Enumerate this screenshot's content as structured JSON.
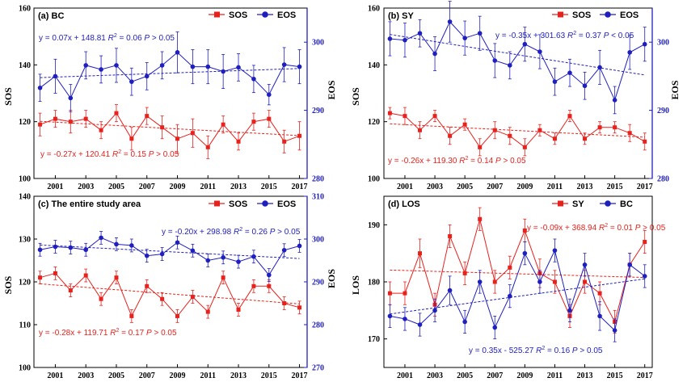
{
  "chart_data": [
    {
      "type": "line",
      "panel_label": "(a) BC",
      "x": [
        2000,
        2001,
        2002,
        2003,
        2004,
        2005,
        2006,
        2007,
        2008,
        2009,
        2010,
        2011,
        2012,
        2013,
        2014,
        2015,
        2016,
        2017
      ],
      "xticks": [
        "2001",
        "2003",
        "2005",
        "2007",
        "2009",
        "2011",
        "2013",
        "2015",
        "2017"
      ],
      "left_axis": {
        "label": "SOS",
        "lim": [
          100,
          160
        ],
        "ticks": [
          "100",
          "120",
          "140",
          "160"
        ],
        "color": "#000000"
      },
      "right_axis": {
        "label": "EOS",
        "lim": [
          280,
          305
        ],
        "ticks": [
          "280",
          "290",
          "300"
        ],
        "color": "#1f1fbf"
      },
      "series": [
        {
          "name": "SOS",
          "axis": "left",
          "color": "#e8211c",
          "marker": "square",
          "values": [
            119,
            121,
            120,
            121,
            117,
            123,
            114,
            122,
            118,
            114,
            116,
            111,
            119,
            113,
            120,
            121,
            113,
            115
          ],
          "errors": [
            4,
            3,
            4,
            3,
            3,
            3,
            4,
            3,
            4,
            5,
            5,
            4,
            3,
            3,
            3,
            3,
            4,
            5
          ]
        },
        {
          "name": "EOS",
          "axis": "right",
          "color": "#1f1fbf",
          "marker": "circle",
          "values": [
            293.3,
            295.0,
            291.8,
            296.6,
            296.0,
            296.6,
            294.2,
            295.0,
            296.6,
            298.5,
            296.4,
            296.4,
            295.7,
            296.3,
            294.6,
            292.3,
            296.7,
            296.4
          ],
          "errors": [
            2,
            2.5,
            2,
            2,
            2,
            2.5,
            2,
            2,
            2,
            3,
            2.5,
            2.5,
            2.5,
            2,
            2,
            1.5,
            2.5,
            2.5
          ]
        }
      ],
      "annotations": [
        {
          "text": "y = 0.07x + 148.81  R² = 0.06  P > 0.05",
          "color": "#1f1fbf"
        },
        {
          "text": "y = -0.27x + 120.41  R² = 0.15  P > 0.05",
          "color": "#e8211c"
        }
      ],
      "legend": "top-right"
    },
    {
      "type": "line",
      "panel_label": "(b) SY",
      "x": [
        2000,
        2001,
        2002,
        2003,
        2004,
        2005,
        2006,
        2007,
        2008,
        2009,
        2010,
        2011,
        2012,
        2013,
        2014,
        2015,
        2016,
        2017
      ],
      "xticks": [
        "2001",
        "2003",
        "2005",
        "2007",
        "2009",
        "2011",
        "2013",
        "2015",
        "2017"
      ],
      "left_axis": {
        "label": "SOS",
        "lim": [
          100,
          160
        ],
        "ticks": [
          "100",
          "120",
          "140",
          "160"
        ],
        "color": "#000000"
      },
      "right_axis": {
        "label": "EOS",
        "lim": [
          280,
          305
        ],
        "ticks": [
          "280",
          "290",
          "300"
        ],
        "color": "#1f1fbf"
      },
      "series": [
        {
          "name": "SOS",
          "axis": "left",
          "color": "#e8211c",
          "marker": "square",
          "values": [
            123,
            122,
            117,
            122,
            115,
            119,
            111,
            117,
            115,
            111,
            117,
            114,
            122,
            114,
            118,
            118,
            116,
            113
          ],
          "errors": [
            2,
            3,
            3,
            2,
            3,
            2,
            3,
            3,
            3,
            3,
            2,
            2,
            2,
            2,
            2,
            2,
            3,
            3
          ]
        },
        {
          "name": "EOS",
          "axis": "right",
          "color": "#1f1fbf",
          "marker": "circle",
          "values": [
            300.5,
            300.3,
            301.3,
            298.3,
            303.0,
            300.6,
            301.3,
            297.3,
            296.6,
            299.7,
            298.6,
            294.2,
            295.5,
            293.6,
            296.3,
            291.5,
            298.5,
            299.7
          ],
          "errors": [
            2.5,
            2.5,
            2,
            2.5,
            3,
            2.5,
            2.5,
            2.5,
            2,
            2.5,
            2.5,
            2,
            2,
            2,
            2.5,
            2,
            2.5,
            2.5
          ]
        }
      ],
      "annotations": [
        {
          "text": "y = -0.35x + 301.63  R² = 0.37  P < 0.05",
          "color": "#1f1fbf"
        },
        {
          "text": "y = -0.26x + 119.30  R² = 0.14  P > 0.05",
          "color": "#e8211c"
        }
      ],
      "legend": "top-right"
    },
    {
      "type": "line",
      "panel_label": "(c) The entire study area",
      "x": [
        2000,
        2001,
        2002,
        2003,
        2004,
        2005,
        2006,
        2007,
        2008,
        2009,
        2010,
        2011,
        2012,
        2013,
        2014,
        2015,
        2016,
        2017
      ],
      "xticks": [
        "2001",
        "2003",
        "2005",
        "2007",
        "2009",
        "2011",
        "2013",
        "2015",
        "2017"
      ],
      "left_axis": {
        "label": "SOS",
        "lim": [
          100,
          140
        ],
        "ticks": [
          "100",
          "110",
          "120",
          "130",
          "140"
        ],
        "color": "#000000"
      },
      "right_axis": {
        "label": "EOS",
        "lim": [
          270,
          310
        ],
        "ticks": [
          "270",
          "280",
          "290",
          "300",
          "310"
        ],
        "color": "#1f1fbf"
      },
      "series": [
        {
          "name": "SOS",
          "axis": "left",
          "color": "#e8211c",
          "marker": "square",
          "values": [
            121,
            122,
            118,
            121.5,
            116,
            121,
            112,
            119,
            116,
            112,
            116.5,
            113,
            121,
            113.5,
            119,
            119,
            115,
            114
          ],
          "errors": [
            1.5,
            1.5,
            1.5,
            1.5,
            1.5,
            1.5,
            1.5,
            1.5,
            1.5,
            1.5,
            1.5,
            1.5,
            1.5,
            1.5,
            1.5,
            1.5,
            1.5,
            1.5
          ]
        },
        {
          "name": "EOS",
          "axis": "right",
          "color": "#1f1fbf",
          "marker": "circle",
          "values": [
            297.5,
            298.2,
            298.0,
            297.5,
            300.3,
            298.8,
            298.5,
            296.1,
            296.5,
            299.2,
            297.3,
            295.0,
            295.7,
            294.7,
            295.9,
            291.6,
            297.4,
            298.4
          ],
          "errors": [
            1.5,
            1.5,
            1.5,
            1.5,
            1.5,
            1.5,
            1.5,
            1.5,
            1.5,
            1.5,
            1.5,
            1.5,
            1.5,
            1.5,
            1.5,
            1.5,
            1.5,
            1.5
          ]
        }
      ],
      "annotations": [
        {
          "text": "y = -0.20x + 298.98  R² = 0.26  P > 0.05",
          "color": "#1f1fbf"
        },
        {
          "text": "y = -0.28x + 119.71  R² = 0.17  P > 0.05",
          "color": "#e8211c"
        }
      ],
      "legend": "top-right"
    },
    {
      "type": "line",
      "panel_label": "(d) LOS",
      "x": [
        2000,
        2001,
        2002,
        2003,
        2004,
        2005,
        2006,
        2007,
        2008,
        2009,
        2010,
        2011,
        2012,
        2013,
        2014,
        2015,
        2016,
        2017
      ],
      "xticks": [
        "2001",
        "2003",
        "2005",
        "2007",
        "2009",
        "2011",
        "2013",
        "2015",
        "2017"
      ],
      "left_axis": {
        "label": "LOS",
        "lim": [
          165,
          195
        ],
        "ticks": [
          "170",
          "180",
          "190"
        ],
        "color": "#000000"
      },
      "series": [
        {
          "name": "SY",
          "color": "#e8211c",
          "marker": "square",
          "values": [
            178,
            178,
            185,
            176,
            188,
            181.5,
            191,
            180,
            182.5,
            189,
            181.5,
            180,
            174,
            180,
            178,
            173,
            183,
            187
          ],
          "errors": [
            2,
            2,
            2.5,
            2,
            2,
            2,
            2,
            2,
            2,
            2,
            2.5,
            2,
            2,
            2,
            2,
            2,
            2,
            2
          ]
        },
        {
          "name": "BC",
          "color": "#1f1fbf",
          "marker": "circle",
          "values": [
            174,
            173.5,
            172.5,
            175,
            178.5,
            173,
            180,
            172,
            177.5,
            185,
            180,
            185.5,
            175,
            183,
            174,
            171.5,
            183,
            181
          ],
          "errors": [
            2,
            2,
            2,
            2,
            2.5,
            2,
            2,
            2,
            2,
            2,
            2,
            2,
            2,
            2,
            2.5,
            2,
            2,
            2
          ]
        }
      ],
      "annotations": [
        {
          "text": "y = -0.09x + 368.94  R² = 0.01  P > 0.05",
          "color": "#e8211c"
        },
        {
          "text": "y = 0.35x - 525.27  R² = 0.16  P > 0.05",
          "color": "#1f1fbf"
        }
      ],
      "legend": "top-right"
    }
  ]
}
